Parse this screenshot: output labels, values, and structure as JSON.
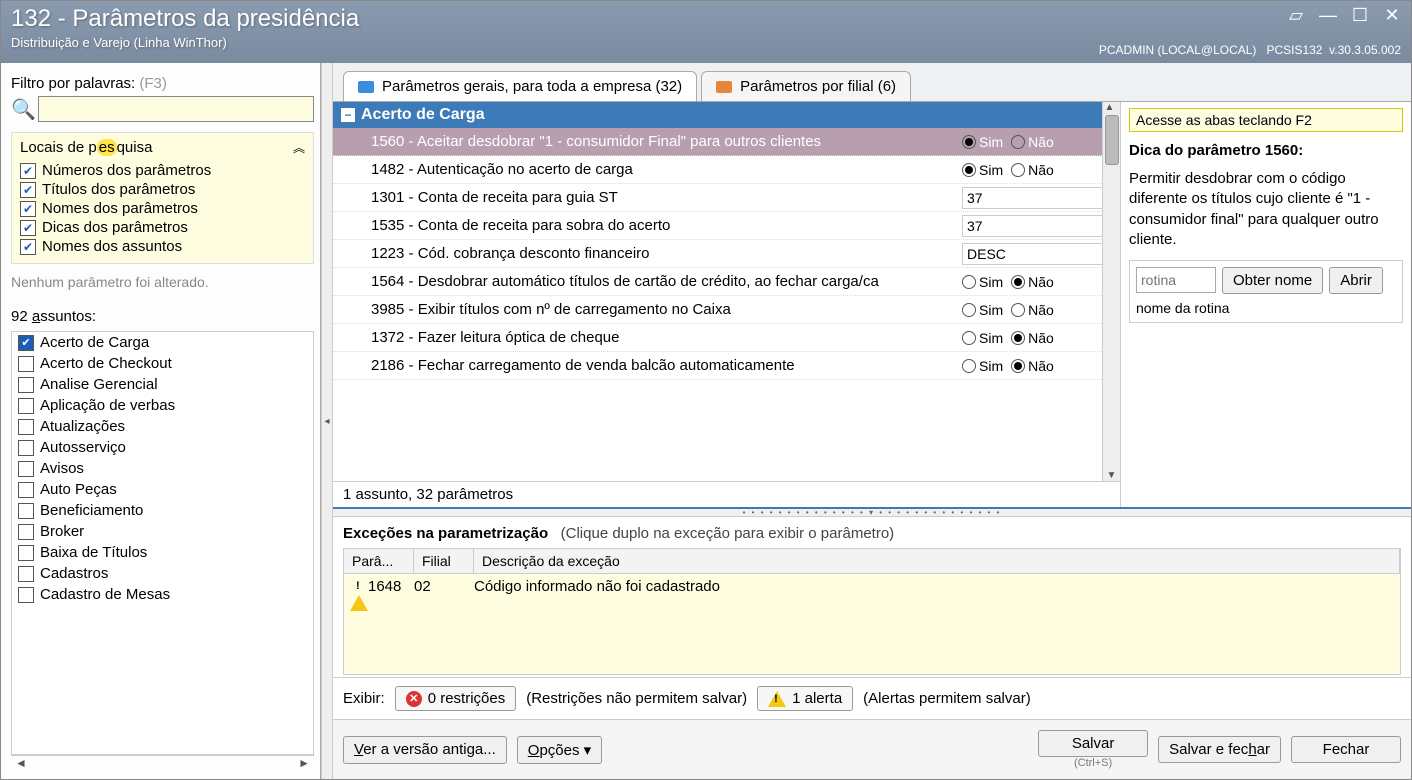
{
  "titlebar": {
    "title": "132 - Parâmetros da presidência",
    "subtitle": "Distribuição e Varejo (Linha WinThor)",
    "user": "PCADMIN (LOCAL@LOCAL)",
    "app": "PCSIS132",
    "version": "v.30.3.05.002"
  },
  "filter": {
    "label": "Filtro por palavras:",
    "hint": "(F3)",
    "value": ""
  },
  "locais": {
    "header_pre": "Locais de p",
    "header_hl": "es",
    "header_post": "quisa",
    "items": [
      "Números dos parâmetros",
      "Títulos dos parâmetros",
      "Nomes dos parâmetros",
      "Dicas dos parâmetros",
      "Nomes dos assuntos"
    ]
  },
  "status": "Nenhum parâmetro foi alterado.",
  "subjects": {
    "label": "92 assuntos:",
    "items": [
      {
        "name": "Acerto de Carga",
        "checked": true
      },
      {
        "name": "Acerto de Checkout",
        "checked": false
      },
      {
        "name": "Analise Gerencial",
        "checked": false
      },
      {
        "name": "Aplicação de verbas",
        "checked": false
      },
      {
        "name": "Atualizações",
        "checked": false
      },
      {
        "name": "Autosserviço",
        "checked": false
      },
      {
        "name": "Avisos",
        "checked": false
      },
      {
        "name": "Auto Peças",
        "checked": false
      },
      {
        "name": "Beneficiamento",
        "checked": false
      },
      {
        "name": "Broker",
        "checked": false
      },
      {
        "name": "Baixa de Títulos",
        "checked": false
      },
      {
        "name": "Cadastros",
        "checked": false
      },
      {
        "name": "Cadastro de Mesas",
        "checked": false
      }
    ]
  },
  "tabs": {
    "general": "Parâmetros gerais, para toda a empresa  (32)",
    "branch": "Parâmetros por filial  (6)"
  },
  "group": {
    "name": "Acerto de Carga"
  },
  "params": [
    {
      "label": "1560 - Aceitar desdobrar \"1 - consumidor Final\" para outros clientes",
      "type": "radio",
      "sim": true,
      "nao": false,
      "selected": true
    },
    {
      "label": "1482 - Autenticação no acerto de carga",
      "type": "radio",
      "sim": true,
      "nao": false
    },
    {
      "label": "1301 - Conta de receita para guia ST",
      "type": "text",
      "value": "37"
    },
    {
      "label": "1535 - Conta de receita para sobra do acerto",
      "type": "text",
      "value": "37"
    },
    {
      "label": "1223 - Cód. cobrança desconto financeiro",
      "type": "text",
      "value": "DESC"
    },
    {
      "label": "1564 - Desdobrar automático títulos de cartão de crédito, ao fechar carga/ca",
      "type": "radio",
      "sim": false,
      "nao": true
    },
    {
      "label": "3985 - Exibir títulos com nº de carregamento no Caixa",
      "type": "radio",
      "sim": false,
      "nao": false
    },
    {
      "label": "1372 - Fazer leitura óptica de cheque",
      "type": "radio",
      "sim": false,
      "nao": true
    },
    {
      "label": "2186 - Fechar carregamento de venda balcão automaticamente",
      "type": "radio",
      "sim": false,
      "nao": true
    }
  ],
  "summary": "1 assunto, 32 parâmetros",
  "tip": {
    "top": "Acesse as abas teclando F2",
    "title": "Dica do parâmetro 1560:",
    "text": "Permitir desdobrar com o código diferente os títulos cujo cliente é \"1 - consumidor final\" para qualquer outro cliente.",
    "rotina_ph": "rotina",
    "btn_obter": "Obter nome",
    "btn_abrir": "Abrir",
    "nome": "nome da rotina"
  },
  "radio_labels": {
    "sim": "Sim",
    "nao": "Não"
  },
  "exceptions": {
    "title": "Exceções na parametrização",
    "hint": "(Clique duplo na exceção para exibir o parâmetro)",
    "cols": {
      "para": "Parâ...",
      "filial": "Filial",
      "desc": "Descrição da exceção"
    },
    "rows": [
      {
        "para": "1648",
        "filial": "02",
        "desc": "Código informado não foi cadastrado"
      }
    ]
  },
  "exibir": {
    "label": "Exibir:",
    "restricoes": "0 restrições",
    "restricoes_note": "(Restrições não permitem salvar)",
    "alerta": "1 alerta",
    "alerta_note": "(Alertas permitem salvar)"
  },
  "footer": {
    "ver_antiga": "Ver a versão antiga...",
    "opcoes": "Opções",
    "salvar": "Salvar",
    "salvar_sc": "(Ctrl+S)",
    "salvar_fechar": "Salvar e fechar",
    "fechar": "Fechar"
  }
}
